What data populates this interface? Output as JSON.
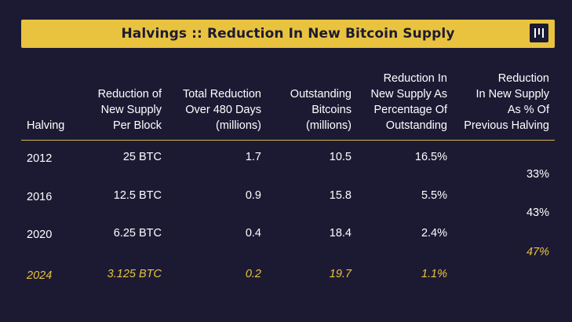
{
  "title": "Halvings :: Reduction In New Bitcoin Supply",
  "logo_icon": "pantera-logo-icon",
  "colors": {
    "background": "#1c1a33",
    "accent": "#e9c33f",
    "text": "#ffffff"
  },
  "table": {
    "headers": [
      "Halving",
      "Reduction of\nNew Supply\nPer Block",
      "Total Reduction\nOver 480 Days\n(millions)",
      "Outstanding\nBitcoins\n(millions)",
      "Reduction In\nNew Supply As\nPercentage Of\nOutstanding",
      "Reduction\nIn New Supply\nAs % Of\nPrevious Halving"
    ],
    "rows": [
      {
        "halving": "2012",
        "per_block": "25 BTC",
        "total_reduction": "1.7",
        "outstanding": "10.5",
        "pct_outstanding": "16.5%"
      },
      {
        "halving": "2016",
        "per_block": "12.5 BTC",
        "total_reduction": "0.9",
        "outstanding": "15.8",
        "pct_outstanding": "5.5%"
      },
      {
        "halving": "2020",
        "per_block": "6.25 BTC",
        "total_reduction": "0.4",
        "outstanding": "18.4",
        "pct_outstanding": "2.4%"
      },
      {
        "halving": "2024",
        "per_block": "3.125 BTC",
        "total_reduction": "0.2",
        "outstanding": "19.7",
        "pct_outstanding": "1.1%"
      }
    ],
    "pct_previous": [
      "33%",
      "43%",
      "47%"
    ]
  }
}
